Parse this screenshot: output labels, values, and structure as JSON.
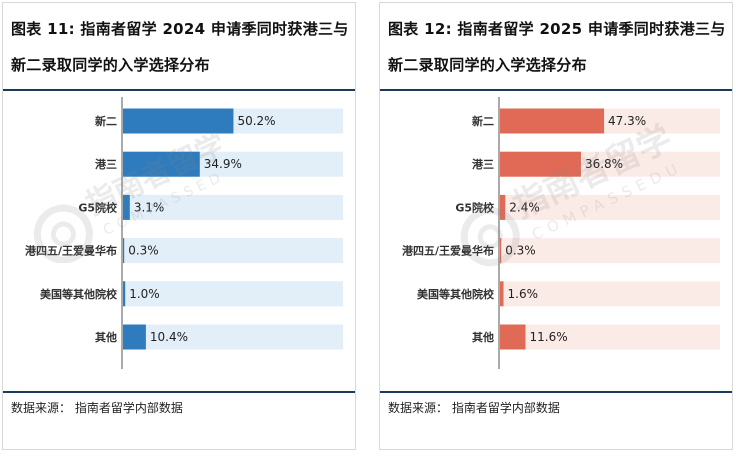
{
  "panels": [
    {
      "title": "图表 11: 指南者留学 2024 申请季同时获港三与新二录取同学的入学选择分布",
      "source": "数据来源： 指南者留学内部数据",
      "watermark": {
        "brand": "指南者留学",
        "sub": "COMPASSEDU"
      }
    },
    {
      "title": "图表 12: 指南者留学 2025 申请季同时获港三与新二录取同学的入学选择分布",
      "source": "数据来源： 指南者留学内部数据",
      "watermark": {
        "brand": "指南者留学",
        "sub": "COMPASSEDU"
      }
    }
  ],
  "chart_data": [
    {
      "type": "bar",
      "orientation": "horizontal",
      "title": "图表 11: 指南者留学 2024 申请季同时获港三与新二录取同学的入学选择分布",
      "categories": [
        "新二",
        "港三",
        "G5院校",
        "港四五/王爱曼华布",
        "美国等其他院校",
        "其他"
      ],
      "values": [
        50.2,
        34.9,
        3.1,
        0.3,
        1.0,
        10.4
      ],
      "labels": [
        "50.2%",
        "34.9%",
        "3.1%",
        "0.3%",
        "1.0%",
        "10.4%"
      ],
      "xlim": [
        0,
        100
      ],
      "unit": "%",
      "bar_color": "#2e7bbd",
      "track_color": "#e2eef8",
      "grid": false
    },
    {
      "type": "bar",
      "orientation": "horizontal",
      "title": "图表 12: 指南者留学 2025 申请季同时获港三与新二录取同学的入学选择分布",
      "categories": [
        "新二",
        "港三",
        "G5院校",
        "港四五/王爱曼华布",
        "美国等其他院校",
        "其他"
      ],
      "values": [
        47.3,
        36.8,
        2.4,
        0.3,
        1.6,
        11.6
      ],
      "labels": [
        "47.3%",
        "36.8%",
        "2.4%",
        "0.3%",
        "1.6%",
        "11.6%"
      ],
      "xlim": [
        0,
        100
      ],
      "unit": "%",
      "bar_color": "#e06a55",
      "track_color": "#fbebe7",
      "grid": false
    }
  ]
}
